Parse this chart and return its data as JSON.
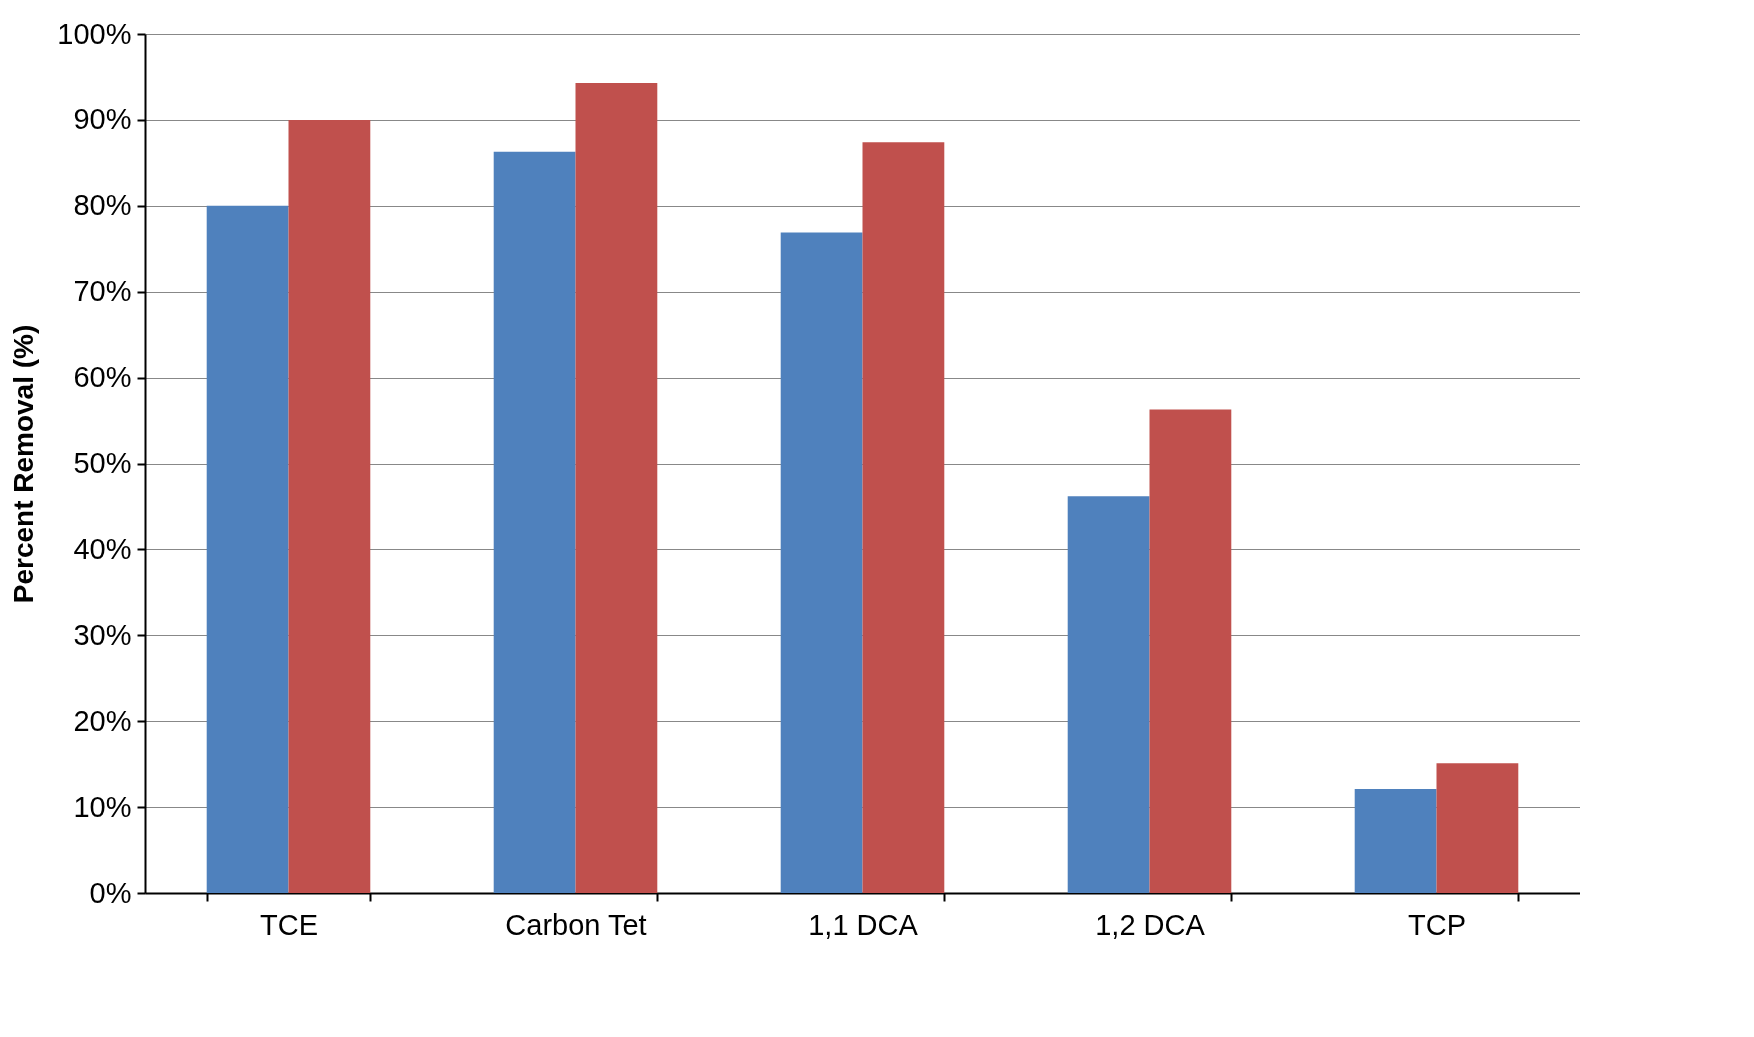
{
  "chart_data": {
    "type": "bar",
    "ylabel": "Percent Removal (%)",
    "categories": [
      "TCE",
      "Carbon Tet",
      "1,1 DCA",
      "1,2 DCA",
      "TCP"
    ],
    "series": [
      {
        "color": "#4f81bd",
        "values": [
          80,
          86.3,
          76.9,
          46.2,
          12.1
        ]
      },
      {
        "color": "#c0504d",
        "values": [
          90,
          94.3,
          87.4,
          56.3,
          15.1
        ]
      }
    ],
    "ylim": [
      0,
      100
    ],
    "yticks": [
      {
        "value": 0,
        "label": "0%"
      },
      {
        "value": 10,
        "label": "10%"
      },
      {
        "value": 20,
        "label": "20%"
      },
      {
        "value": 30,
        "label": "30%"
      },
      {
        "value": 40,
        "label": "40%"
      },
      {
        "value": 50,
        "label": "50%"
      },
      {
        "value": 60,
        "label": "60%"
      },
      {
        "value": 70,
        "label": "70%"
      },
      {
        "value": 80,
        "label": "80%"
      },
      {
        "value": 90,
        "label": "90%"
      },
      {
        "value": 100,
        "label": "100%"
      }
    ],
    "grid": "y"
  }
}
